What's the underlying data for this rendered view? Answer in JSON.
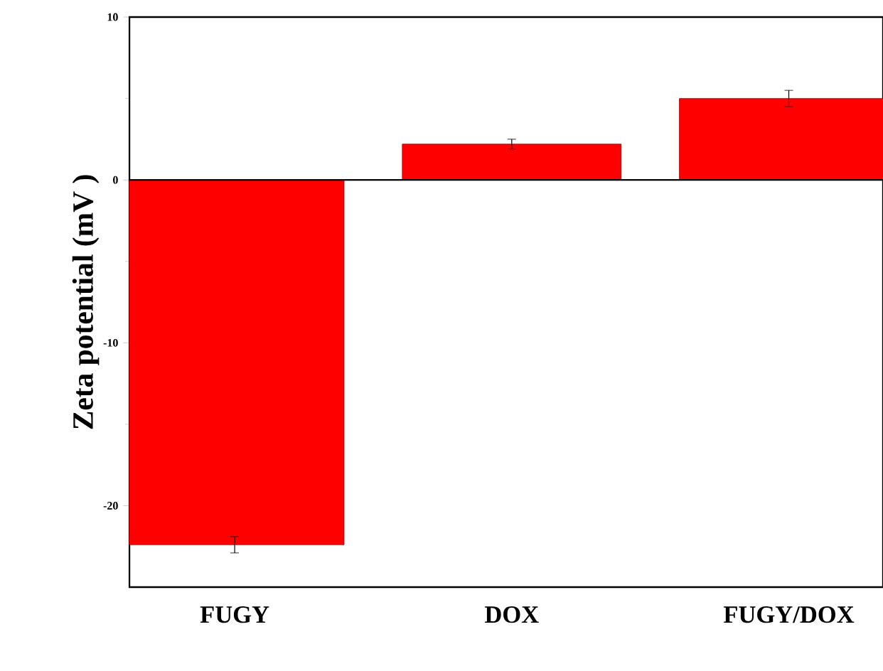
{
  "chart_data": {
    "type": "bar",
    "ylabel": "Zeta potential (mV )",
    "categories": [
      "FUGY",
      "DOX",
      "FUGY/DOX"
    ],
    "values": [
      -22.4,
      2.2,
      5.0
    ],
    "errors": [
      0.5,
      0.3,
      0.5
    ],
    "color": "#ff0000",
    "ylim": [
      -25,
      10
    ],
    "yticks": [
      -20,
      -10,
      0,
      10
    ]
  }
}
